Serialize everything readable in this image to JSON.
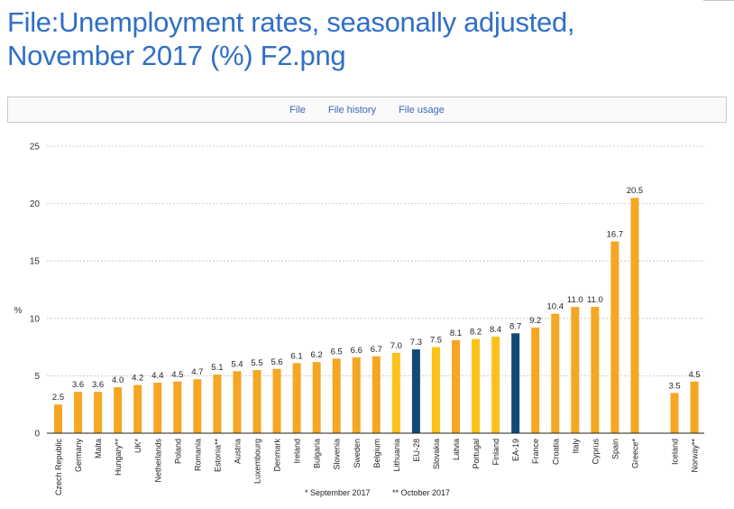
{
  "page": {
    "title_line1": "File:Unemployment rates, seasonally adjusted,",
    "title_line2": "November 2017 (%) F2.png"
  },
  "tabs": [
    {
      "label": "File"
    },
    {
      "label": "File history"
    },
    {
      "label": "File usage"
    }
  ],
  "colors": {
    "orange": "#f5a623",
    "yellow": "#fcc21b",
    "navy": "#114a73",
    "grid": "#bdbdbd"
  },
  "chart_data": {
    "type": "bar",
    "ylabel": "%",
    "ylim": [
      0,
      25
    ],
    "yticks": [
      0,
      5,
      10,
      15,
      20,
      25
    ],
    "categories": [
      "Czech Republic",
      "Germany",
      "Malta",
      "Hungary**",
      "UK*",
      "Netherlands",
      "Poland",
      "Romania",
      "Estonia**",
      "Austria",
      "Luxembourg",
      "Denmark",
      "Ireland",
      "Bulgaria",
      "Slovenia",
      "Sweden",
      "Belgium",
      "Lithuania",
      "EU-28",
      "Slovakia",
      "Latvia",
      "Portugal",
      "Finland",
      "EA-19",
      "France",
      "Croatia",
      "Italy",
      "Cyprus",
      "Spain",
      "Greece*",
      "",
      "Iceland",
      "Norway**"
    ],
    "values": [
      2.5,
      3.6,
      3.6,
      4.0,
      4.2,
      4.4,
      4.5,
      4.7,
      5.1,
      5.4,
      5.5,
      5.6,
      6.1,
      6.2,
      6.5,
      6.6,
      6.7,
      7.0,
      7.3,
      7.5,
      8.1,
      8.2,
      8.4,
      8.7,
      9.2,
      10.4,
      11.0,
      11.0,
      16.7,
      20.5,
      null,
      3.5,
      4.5
    ],
    "value_labels": [
      "2.5",
      "3.6",
      "3.6",
      "4.0",
      "4.2",
      "4.4",
      "4.5",
      "4.7",
      "5.1",
      "5.4",
      "5.5",
      "5.6",
      "6.1",
      "6.2",
      "6.5",
      "6.6",
      "6.7",
      "7.0",
      "7.3",
      "7.5",
      "8.1",
      "8.2",
      "8.4",
      "8.7",
      "9.2",
      "10.4",
      "11.0",
      "11.0",
      "16.7",
      "20.5",
      "",
      "3.5",
      "4.5"
    ],
    "bar_colors": [
      "orange",
      "orange",
      "orange",
      "orange",
      "orange",
      "orange",
      "orange",
      "orange",
      "orange",
      "orange",
      "orange",
      "orange",
      "orange",
      "orange",
      "orange",
      "orange",
      "orange",
      "yellow",
      "navy",
      "yellow",
      "orange",
      "yellow",
      "yellow",
      "navy",
      "orange",
      "orange",
      "orange",
      "orange",
      "orange",
      "orange",
      "",
      "orange",
      "orange"
    ],
    "footnotes": [
      "* September 2017",
      "** October 2017"
    ]
  }
}
